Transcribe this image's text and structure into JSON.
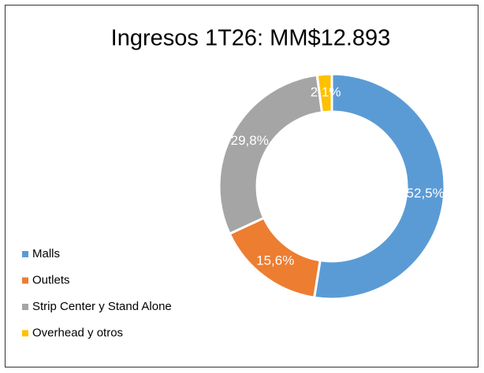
{
  "chart_data": {
    "type": "pie",
    "title": "Ingresos 1T26: MM$12.893",
    "categories": [
      "Malls",
      "Outlets",
      "Strip Center y Stand Alone",
      "Overhead y otros"
    ],
    "values": [
      52.5,
      15.6,
      29.8,
      2.1
    ],
    "value_labels": [
      "52,5%",
      "15,6%",
      "29,8%",
      "2,1%"
    ],
    "colors": [
      "#5b9bd5",
      "#ed7d31",
      "#a5a5a5",
      "#ffc000"
    ],
    "donut": true,
    "legend": "left"
  }
}
